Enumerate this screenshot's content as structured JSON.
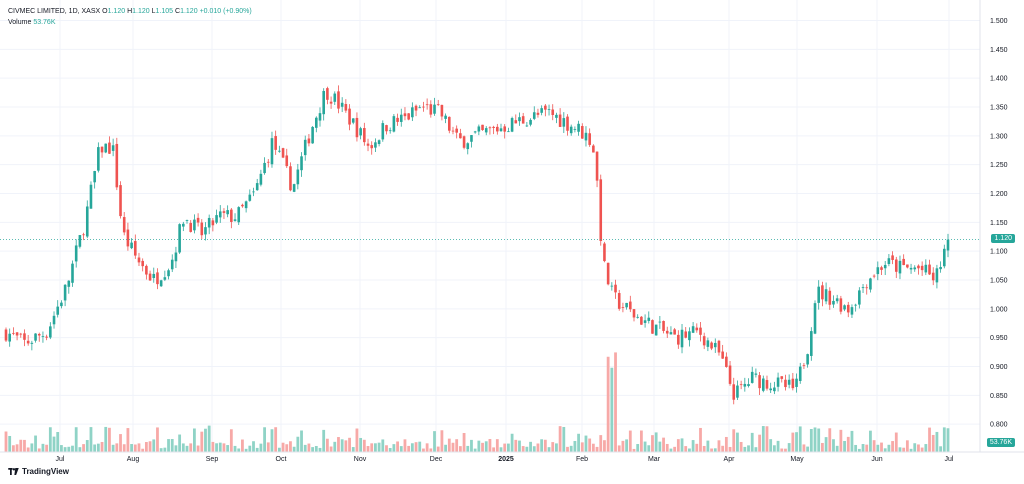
{
  "legend": {
    "symbol": "CIVMEC LIMITED, 1D, XASX",
    "open_label": "O",
    "open": "1.120",
    "high_label": "H",
    "high": "1.120",
    "low_label": "L",
    "low": "1.105",
    "close_label": "C",
    "close": "1.120",
    "change": "+0.010 (+0.90%)",
    "volume_label": "Volume",
    "volume_value": "53.76K"
  },
  "brand": "TradingView",
  "colors": {
    "up": "#26a69a",
    "down": "#ef5350",
    "up_vol": "#8fd3c6",
    "down_vol": "#f7a9a7",
    "grid": "#f0f3fa"
  },
  "price_badge": "1.120",
  "volume_badge": "53.76K",
  "chart_data": {
    "type": "candlestick",
    "title": "CIVMEC LIMITED, 1D, XASX",
    "y_ticks": [
      "1.500",
      "1.450",
      "1.400",
      "1.350",
      "1.300",
      "1.250",
      "1.200",
      "1.150",
      "1.100",
      "1.050",
      "1.000",
      "0.950",
      "0.900",
      "0.850",
      "0.800"
    ],
    "ylim": [
      0.775,
      1.5
    ],
    "x_ticks": [
      "Jul",
      "Aug",
      "Sep",
      "Oct",
      "Nov",
      "Dec",
      "2025",
      "Feb",
      "Mar",
      "Apr",
      "May",
      "Jun",
      "Jul"
    ],
    "last_price": 1.12,
    "grid": true,
    "anchors": [
      {
        "date": "2024-06-24",
        "price": 0.96
      },
      {
        "date": "2024-07-01",
        "price": 0.94
      },
      {
        "date": "2024-07-10",
        "price": 0.96
      },
      {
        "date": "2024-07-18",
        "price": 1.04
      },
      {
        "date": "2024-07-25",
        "price": 1.15
      },
      {
        "date": "2024-07-31",
        "price": 1.28
      },
      {
        "date": "2024-08-05",
        "price": 1.28
      },
      {
        "date": "2024-08-09",
        "price": 1.13
      },
      {
        "date": "2024-08-14",
        "price": 1.09
      },
      {
        "date": "2024-08-21",
        "price": 1.05
      },
      {
        "date": "2024-08-28",
        "price": 1.08
      },
      {
        "date": "2024-09-02",
        "price": 1.16
      },
      {
        "date": "2024-09-09",
        "price": 1.13
      },
      {
        "date": "2024-09-16",
        "price": 1.16
      },
      {
        "date": "2024-09-23",
        "price": 1.16
      },
      {
        "date": "2024-09-30",
        "price": 1.2
      },
      {
        "date": "2024-10-07",
        "price": 1.29
      },
      {
        "date": "2024-10-15",
        "price": 1.21
      },
      {
        "date": "2024-10-22",
        "price": 1.31
      },
      {
        "date": "2024-10-28",
        "price": 1.38
      },
      {
        "date": "2024-11-01",
        "price": 1.36
      },
      {
        "date": "2024-11-08",
        "price": 1.32
      },
      {
        "date": "2024-11-14",
        "price": 1.28
      },
      {
        "date": "2024-11-21",
        "price": 1.32
      },
      {
        "date": "2024-11-28",
        "price": 1.33
      },
      {
        "date": "2024-12-05",
        "price": 1.35
      },
      {
        "date": "2024-12-12",
        "price": 1.34
      },
      {
        "date": "2024-12-19",
        "price": 1.29
      },
      {
        "date": "2025-01-02",
        "price": 1.31
      },
      {
        "date": "2025-01-15",
        "price": 1.33
      },
      {
        "date": "2025-01-24",
        "price": 1.34
      },
      {
        "date": "2025-02-05",
        "price": 1.31
      },
      {
        "date": "2025-02-10",
        "price": 1.29
      },
      {
        "date": "2025-02-12",
        "price": 1.21
      },
      {
        "date": "2025-02-14",
        "price": 1.08
      },
      {
        "date": "2025-02-18",
        "price": 1.02
      },
      {
        "date": "2025-02-26",
        "price": 0.99
      },
      {
        "date": "2025-03-06",
        "price": 0.97
      },
      {
        "date": "2025-03-14",
        "price": 0.95
      },
      {
        "date": "2025-03-24",
        "price": 0.96
      },
      {
        "date": "2025-04-01",
        "price": 0.92
      },
      {
        "date": "2025-04-07",
        "price": 0.85
      },
      {
        "date": "2025-04-14",
        "price": 0.88
      },
      {
        "date": "2025-04-23",
        "price": 0.87
      },
      {
        "date": "2025-05-01",
        "price": 0.86
      },
      {
        "date": "2025-05-06",
        "price": 0.94
      },
      {
        "date": "2025-05-09",
        "price": 1.03
      },
      {
        "date": "2025-05-15",
        "price": 1.02
      },
      {
        "date": "2025-05-22",
        "price": 1.0
      },
      {
        "date": "2025-05-29",
        "price": 1.05
      },
      {
        "date": "2025-06-05",
        "price": 1.08
      },
      {
        "date": "2025-06-12",
        "price": 1.07
      },
      {
        "date": "2025-06-19",
        "price": 1.07
      },
      {
        "date": "2025-06-25",
        "price": 1.05
      },
      {
        "date": "2025-06-30",
        "price": 1.12
      }
    ]
  }
}
